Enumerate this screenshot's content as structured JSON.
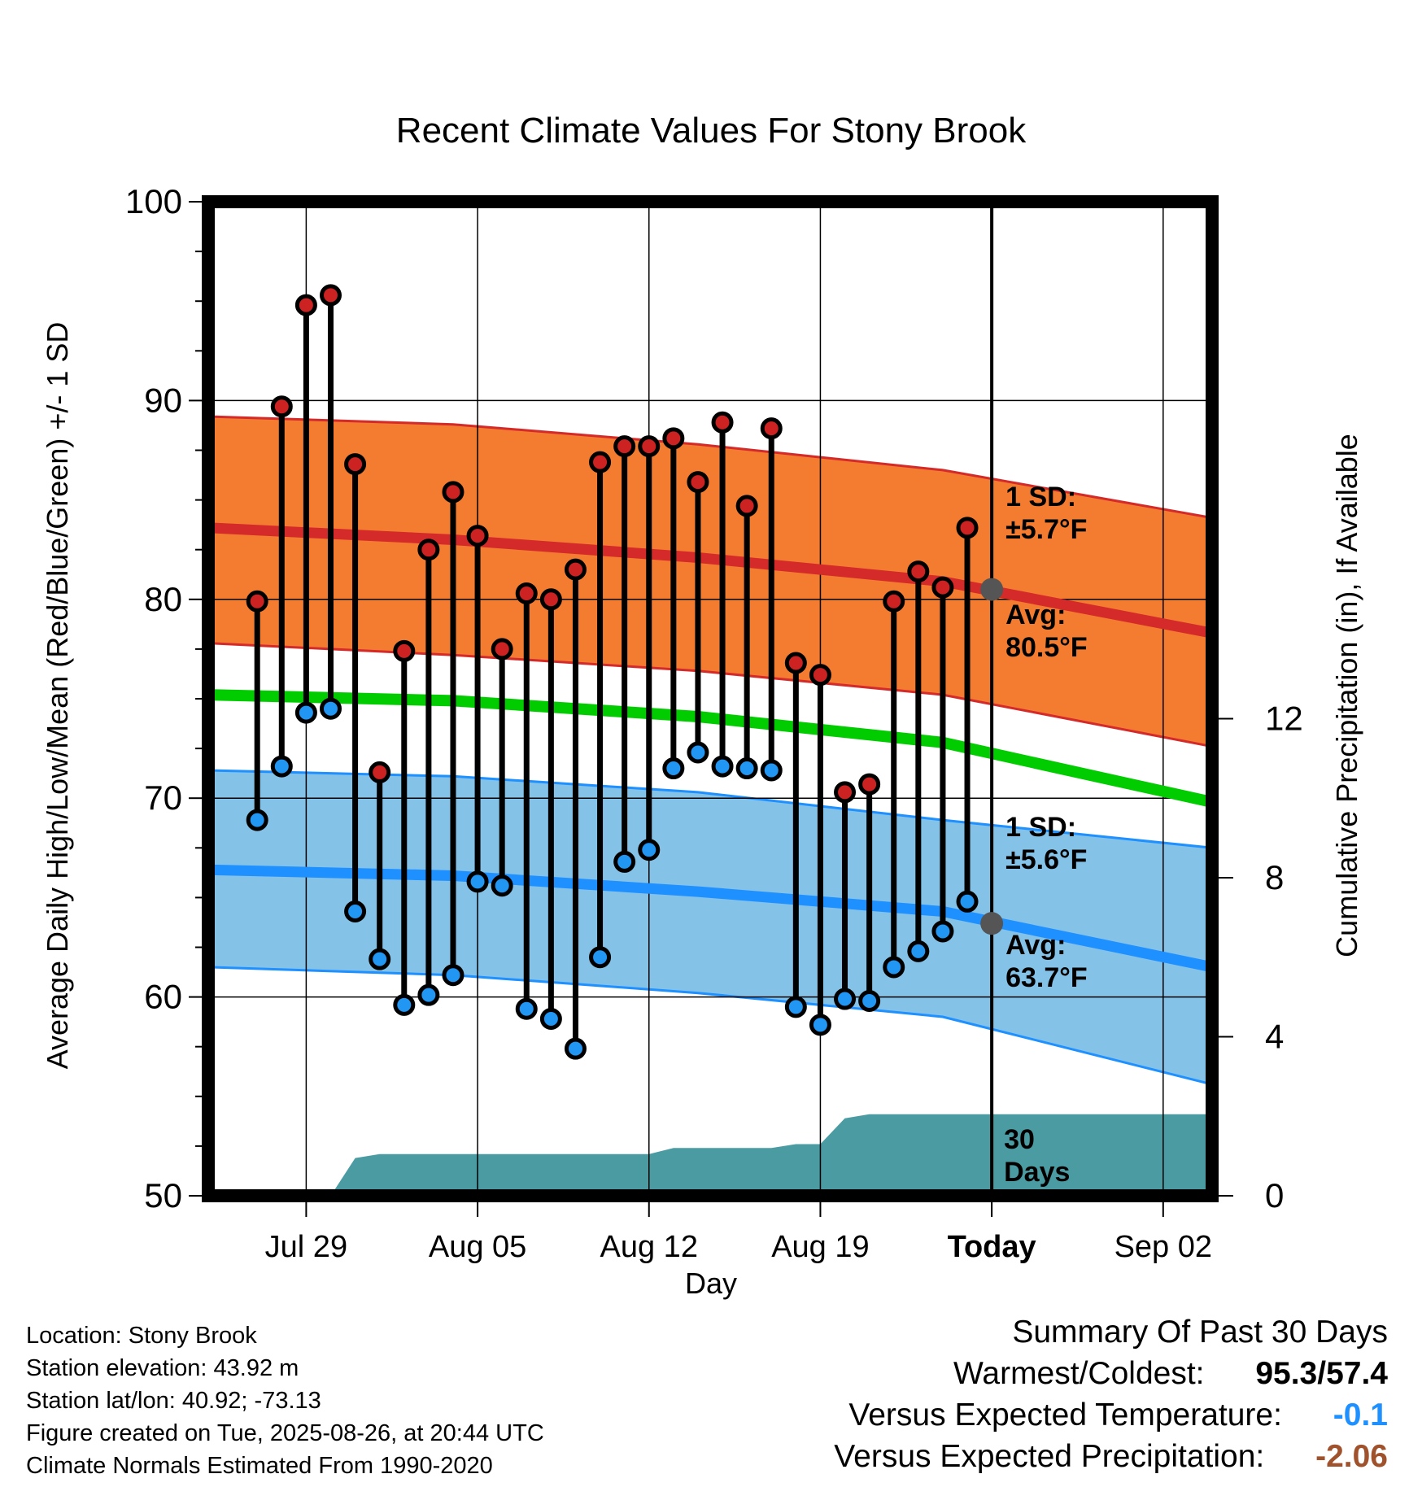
{
  "chart_data": {
    "type": "line",
    "title": "Recent Climate Values For Stony Brook",
    "xlabel": "Day",
    "ylabel_left": "Average Daily High/Low/Mean (Red/Blue/Green) +/- 1 SD",
    "ylabel_right": "Cumulative Precipitation (in), If Available",
    "ylim": [
      50,
      100
    ],
    "y_ticks": [
      "50",
      "60",
      "70",
      "80",
      "90",
      "100"
    ],
    "y2lim": [
      0,
      25
    ],
    "y2_ticks": [
      "0",
      "4",
      "8",
      "12"
    ],
    "x_range_days": [
      "2025-07-25",
      "2025-09-04"
    ],
    "x_ticks": [
      {
        "date": "2025-07-29",
        "label": "Jul 29"
      },
      {
        "date": "2025-08-05",
        "label": "Aug 05"
      },
      {
        "date": "2025-08-12",
        "label": "Aug 12"
      },
      {
        "date": "2025-08-19",
        "label": "Aug 19"
      },
      {
        "date": "2025-08-26",
        "label": "Today"
      },
      {
        "date": "2025-09-02",
        "label": "Sep 02"
      }
    ],
    "today": "2025-08-26",
    "grid": true,
    "dates": [
      "2025-07-27",
      "2025-07-28",
      "2025-07-29",
      "2025-07-30",
      "2025-07-31",
      "2025-08-01",
      "2025-08-02",
      "2025-08-03",
      "2025-08-04",
      "2025-08-05",
      "2025-08-06",
      "2025-08-07",
      "2025-08-08",
      "2025-08-09",
      "2025-08-10",
      "2025-08-11",
      "2025-08-12",
      "2025-08-13",
      "2025-08-14",
      "2025-08-15",
      "2025-08-16",
      "2025-08-17",
      "2025-08-18",
      "2025-08-19",
      "2025-08-20",
      "2025-08-21",
      "2025-08-22",
      "2025-08-23",
      "2025-08-24",
      "2025-08-25"
    ],
    "daily_high": [
      79.9,
      89.7,
      94.8,
      95.3,
      86.8,
      71.3,
      77.4,
      82.5,
      85.4,
      83.2,
      77.5,
      80.3,
      80.0,
      81.5,
      86.9,
      87.7,
      87.7,
      88.1,
      85.9,
      88.9,
      84.7,
      88.6,
      76.8,
      76.2,
      70.3,
      70.7,
      79.9,
      81.4,
      80.6,
      83.6
    ],
    "daily_low": [
      68.9,
      71.6,
      74.3,
      74.5,
      64.3,
      61.9,
      59.6,
      60.1,
      61.1,
      65.8,
      65.6,
      59.4,
      58.9,
      57.4,
      62.0,
      66.8,
      67.4,
      71.5,
      72.3,
      71.6,
      71.5,
      71.4,
      59.5,
      58.6,
      59.9,
      59.8,
      61.5,
      62.3,
      63.3,
      64.8
    ],
    "normals": {
      "dates": [
        "2025-07-25",
        "2025-08-04",
        "2025-08-14",
        "2025-08-24",
        "2025-09-04"
      ],
      "high_avg": [
        83.6,
        83.0,
        82.1,
        80.9,
        78.3
      ],
      "high_sd_upper": [
        89.2,
        88.8,
        87.8,
        86.5,
        84.1
      ],
      "high_sd_lower": [
        77.8,
        77.2,
        76.4,
        75.2,
        72.6
      ],
      "mean_avg": [
        75.2,
        74.9,
        74.1,
        72.8,
        69.8
      ],
      "low_avg": [
        66.4,
        66.1,
        65.3,
        64.3,
        61.5
      ],
      "low_sd_upper": [
        71.4,
        71.1,
        70.3,
        68.9,
        67.5
      ],
      "low_sd_lower": [
        61.5,
        61.1,
        60.2,
        59.0,
        55.6
      ]
    },
    "precip_cumulative": {
      "dates": [
        "2025-07-29",
        "2025-07-30",
        "2025-07-31",
        "2025-08-01",
        "2025-08-02",
        "2025-08-07",
        "2025-08-12",
        "2025-08-13",
        "2025-08-17",
        "2025-08-18",
        "2025-08-19",
        "2025-08-20",
        "2025-08-21",
        "2025-09-04"
      ],
      "values": [
        0.0,
        0.0,
        0.95,
        1.05,
        1.05,
        1.05,
        1.05,
        1.2,
        1.2,
        1.3,
        1.3,
        1.95,
        2.05,
        2.05
      ]
    },
    "colors": {
      "high_band": "#f47c30",
      "high_line": "#d42a2a",
      "high_band_edge": "#d42a2a",
      "low_band": "#84c2e8",
      "low_line": "#1e90ff",
      "mean_line": "#00cc00",
      "precip": "#4a9ba2",
      "high_marker": "#cc2222",
      "low_marker": "#2196f3",
      "annotation": "#555555"
    },
    "annotations": {
      "high_sd_label": "1 SD:",
      "high_sd_value": "±5.7°F",
      "high_avg_label": "Avg:",
      "high_avg_value": "80.5°F",
      "high_avg_point": 80.5,
      "low_sd_label": "1 SD:",
      "low_sd_value": "±5.6°F",
      "low_avg_label": "Avg:",
      "low_avg_value": "63.7°F",
      "low_avg_point": 63.7,
      "precip_label_1": "30",
      "precip_label_2": "Days"
    }
  },
  "footer": {
    "location": "Location: Stony Brook",
    "elevation": "Station elevation: 43.92 m",
    "latlon": "Station lat/lon: 40.92; -73.13",
    "created": "Figure created on Tue, 2025-08-26, at 20:44 UTC",
    "normals": "Climate Normals Estimated From 1990-2020"
  },
  "summary": {
    "heading": "Summary Of Past 30 Days",
    "warmest_label": "Warmest/Coldest:",
    "warmest_value": "95.3",
    "coldest_value": "57.4",
    "temp_label": "Versus Expected Temperature:",
    "temp_value": "-0.1",
    "temp_color": "#1e90ff",
    "precip_label": "Versus Expected Precipitation:",
    "precip_value": "-2.06",
    "precip_color": "#a0522d"
  }
}
